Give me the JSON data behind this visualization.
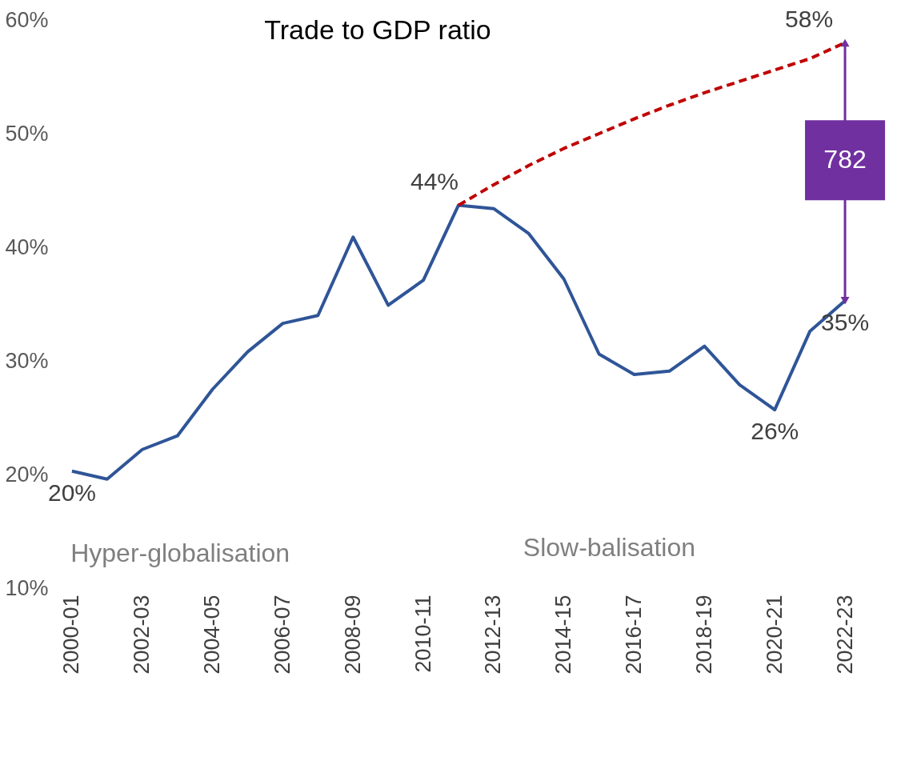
{
  "chart_data": {
    "type": "line",
    "title": "Trade to GDP ratio",
    "categories": [
      "2000-01",
      null,
      "2002-03",
      null,
      "2004-05",
      null,
      "2006-07",
      null,
      "2008-09",
      null,
      "2010-11",
      null,
      "2012-13",
      null,
      "2014-15",
      null,
      "2016-17",
      null,
      "2018-19",
      null,
      "2020-21",
      null,
      "2022-23"
    ],
    "series": [
      {
        "color": "#2f5597",
        "line_style": "solid",
        "values": [
          20.3,
          19.6,
          22.2,
          23.4,
          27.5,
          30.8,
          33.3,
          34.0,
          40.9,
          34.9,
          37.1,
          43.7,
          43.4,
          41.2,
          37.2,
          30.6,
          28.8,
          29.1,
          31.3,
          27.9,
          25.7,
          32.6,
          35.3
        ],
        "value_labels": [
          "20%",
          null,
          null,
          null,
          null,
          null,
          null,
          null,
          null,
          null,
          null,
          "44%",
          null,
          null,
          null,
          null,
          null,
          null,
          null,
          null,
          "26%",
          null,
          "35%"
        ]
      },
      {
        "color": "#c00000",
        "line_style": "dashed",
        "values": [
          null,
          null,
          null,
          null,
          null,
          null,
          null,
          null,
          null,
          null,
          null,
          43.7,
          45.5,
          47.2,
          48.7,
          50.0,
          51.3,
          52.5,
          53.6,
          54.6,
          55.6,
          56.6,
          58.0
        ],
        "value_labels": [
          null,
          null,
          null,
          null,
          null,
          null,
          null,
          null,
          null,
          null,
          null,
          null,
          null,
          null,
          null,
          null,
          null,
          null,
          null,
          null,
          null,
          null,
          "58%"
        ]
      }
    ],
    "ylim": [
      10,
      60
    ],
    "yticks": [
      {
        "value": 10,
        "label": "10%"
      },
      {
        "value": 20,
        "label": "20%"
      },
      {
        "value": 30,
        "label": "30%"
      },
      {
        "value": 40,
        "label": "40%"
      },
      {
        "value": 50,
        "label": "50%"
      },
      {
        "value": 60,
        "label": "60%"
      }
    ],
    "grid": false,
    "annotations": [
      "Hyper-globalisation",
      "Slow-balisation",
      "782"
    ]
  }
}
